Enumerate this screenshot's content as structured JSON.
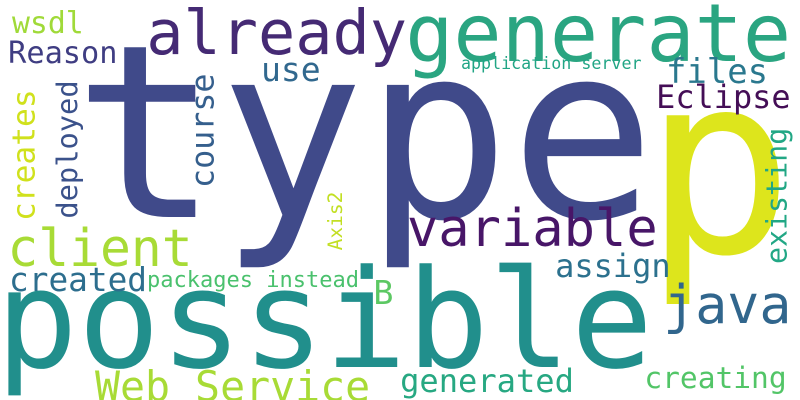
{
  "words": [
    {
      "text": "type",
      "color": "#404a8a",
      "rotated": false
    },
    {
      "text": "possible",
      "color": "#218f8c",
      "rotated": false
    },
    {
      "text": "p",
      "color": "#dde51c",
      "rotated": false
    },
    {
      "text": "generate",
      "color": "#2aa581",
      "rotated": false
    },
    {
      "text": "already",
      "color": "#452a74",
      "rotated": false
    },
    {
      "text": "variable",
      "color": "#481668",
      "rotated": false
    },
    {
      "text": "client",
      "color": "#a8db36",
      "rotated": false
    },
    {
      "text": "java",
      "color": "#31668d",
      "rotated": false
    },
    {
      "text": "Web Service",
      "color": "#a8db36",
      "rotated": false
    },
    {
      "text": "generated",
      "color": "#27a882",
      "rotated": false
    },
    {
      "text": "creating",
      "color": "#52c567",
      "rotated": false
    },
    {
      "text": "assign",
      "color": "#2c718e",
      "rotated": false
    },
    {
      "text": "created",
      "color": "#2d6e8e",
      "rotated": false
    },
    {
      "text": "Eclipse",
      "color": "#440e56",
      "rotated": false
    },
    {
      "text": "files",
      "color": "#2a788e",
      "rotated": false
    },
    {
      "text": "Reason",
      "color": "#3f3d82",
      "rotated": false
    },
    {
      "text": "use",
      "color": "#31688e",
      "rotated": false
    },
    {
      "text": "wsdl",
      "color": "#a0da39",
      "rotated": false
    },
    {
      "text": "packages instead",
      "color": "#4ac16d",
      "rotated": false
    },
    {
      "text": "application server",
      "color": "#21a585",
      "rotated": false
    },
    {
      "text": "B",
      "color": "#5cc863",
      "rotated": false
    },
    {
      "text": "course",
      "color": "#355f8d",
      "rotated": true
    },
    {
      "text": "deployed",
      "color": "#3b528b",
      "rotated": true
    },
    {
      "text": "creates",
      "color": "#d0e11c",
      "rotated": true
    },
    {
      "text": "Axis2",
      "color": "#c2df23",
      "rotated": true
    },
    {
      "text": "existing",
      "color": "#22a785",
      "rotated": true
    }
  ]
}
